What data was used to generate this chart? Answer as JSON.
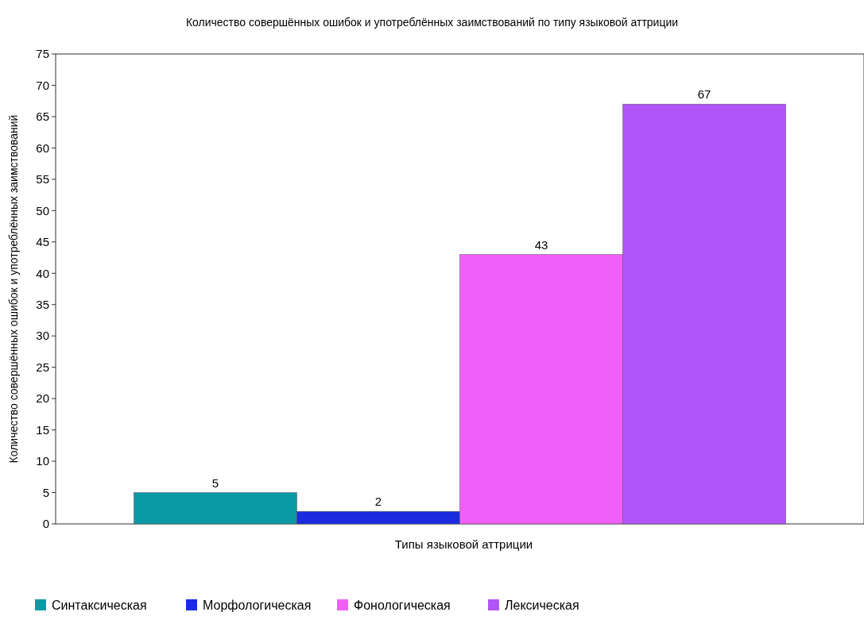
{
  "chart_data": {
    "type": "bar",
    "title": "Количество совершённых ошибок и употреблённых заимствований по типу языковой аттриции",
    "xlabel": "Типы языковой аттриции",
    "ylabel": "Количество совершённых ошибок и употреблённых заимствований",
    "categories": [
      null
    ],
    "series": [
      {
        "name": "Синтаксическая",
        "color": "#0a9aa4",
        "values": [
          5
        ]
      },
      {
        "name": "Морфологическая",
        "color": "#1a2be0",
        "values": [
          2
        ]
      },
      {
        "name": "Фонологическая",
        "color": "#f060f8",
        "values": [
          43
        ]
      },
      {
        "name": "Лексическая",
        "color": "#b055f8",
        "values": [
          67
        ]
      }
    ],
    "ylim": [
      0,
      75
    ],
    "yticks": [
      0,
      5,
      10,
      15,
      20,
      25,
      30,
      35,
      40,
      45,
      50,
      55,
      60,
      65,
      70,
      75
    ],
    "data_labels": true,
    "legend": "bottom left",
    "grid": false
  }
}
